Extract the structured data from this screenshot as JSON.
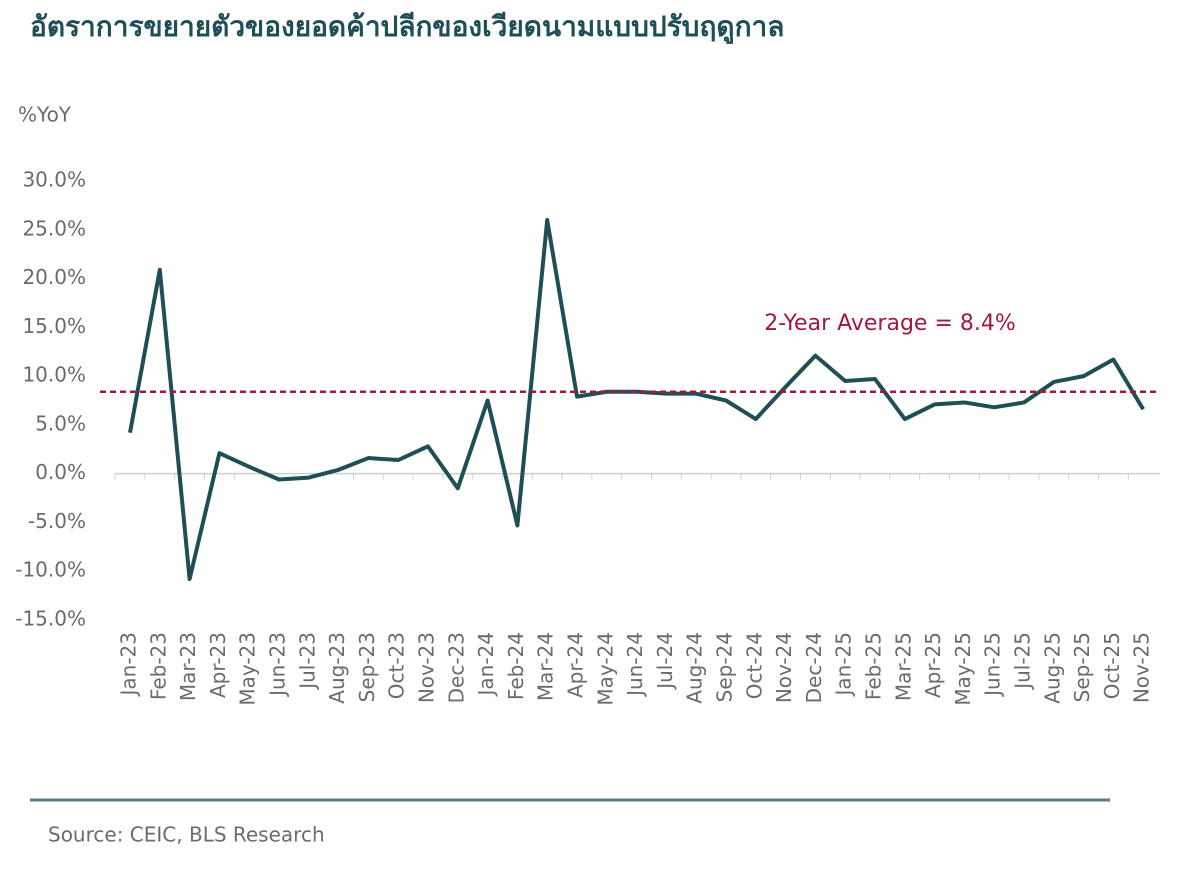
{
  "chart_data": {
    "type": "line",
    "title": "อัตราการขยายตัวของยอดค้าปลีกของเวียดนามแบบปรับฤดูกาล",
    "y_label": "%YoY",
    "source": "Source: CEIC, BLS Research",
    "categories": [
      "Jan-23",
      "Feb-23",
      "Mar-23",
      "Apr-23",
      "May-23",
      "Jun-23",
      "Jul-23",
      "Aug-23",
      "Sep-23",
      "Oct-23",
      "Nov-23",
      "Dec-23",
      "Jan-24",
      "Feb-24",
      "Mar-24",
      "Apr-24",
      "May-24",
      "Jun-24",
      "Jul-24",
      "Aug-24",
      "Sep-24",
      "Oct-24",
      "Nov-24",
      "Dec-24",
      "Jan-25",
      "Feb-25",
      "Mar-25",
      "Apr-25",
      "May-25",
      "Jun-25",
      "Jul-25",
      "Aug-25",
      "Sep-25",
      "Oct-25",
      "Nov-25"
    ],
    "series": [
      {
        "color": "#1f4e57",
        "values": [
          4.2,
          20.9,
          -10.8,
          2.1,
          0.7,
          -0.6,
          -0.4,
          0.4,
          1.6,
          1.4,
          2.8,
          -1.5,
          7.5,
          -5.3,
          26.0,
          7.9,
          8.4,
          8.4,
          8.2,
          8.2,
          7.5,
          5.6,
          8.9,
          12.1,
          9.5,
          9.7,
          5.6,
          7.1,
          7.3,
          6.8,
          7.3,
          9.4,
          10.0,
          11.7,
          6.6
        ]
      }
    ],
    "average": {
      "value": 8.4,
      "label": "2-Year Average = 8.4%",
      "color": "#a3193a"
    },
    "ylim": [
      -15,
      30
    ],
    "yticks": [
      {
        "value": -15,
        "label": "-15.0%"
      },
      {
        "value": -10,
        "label": "-10.0%"
      },
      {
        "value": -5,
        "label": "-5.0%"
      },
      {
        "value": 0,
        "label": "0.0%"
      },
      {
        "value": 5,
        "label": "5.0%"
      },
      {
        "value": 10,
        "label": "10.0%"
      },
      {
        "value": 15,
        "label": "15.0%"
      },
      {
        "value": 20,
        "label": "20.0%"
      },
      {
        "value": 25,
        "label": "25.0%"
      },
      {
        "value": 30,
        "label": "30.0%"
      }
    ],
    "grid": false
  }
}
